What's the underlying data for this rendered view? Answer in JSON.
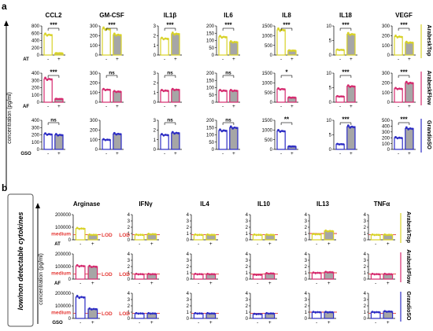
{
  "panel_a": {
    "letter": "a",
    "ylabel": "concentration (pg/ml)",
    "markers": [
      "",
      "-",
      "+"
    ],
    "rows": [
      {
        "treatment": "AT",
        "side_label": "ArabeskTop",
        "color": "#d8d227"
      },
      {
        "treatment": "AF",
        "side_label": "ArabeskFlow",
        "color": "#d52a6e"
      },
      {
        "treatment": "GSO",
        "side_label": "GrandioSO",
        "color": "#2c2cc4"
      }
    ]
  },
  "panel_b": {
    "letter": "b",
    "side_box_label": "low/non detectable cytokines",
    "ylabel": "concentration (pg/ml)",
    "markers": [
      "",
      "-",
      "+"
    ],
    "lod_label": "LOD",
    "medium_label": "medium",
    "lod_color": "#e53935",
    "rows": [
      {
        "treatment": "AT",
        "side_label": "ArabeskTop",
        "color": "#d8d227"
      },
      {
        "treatment": "AF",
        "side_label": "ArabeskFlow",
        "color": "#d52a6e"
      },
      {
        "treatment": "GSO",
        "side_label": "GrandioSO",
        "color": "#2c2cc4"
      }
    ]
  },
  "chart_data": [
    {
      "type": "bar",
      "panel": "a",
      "title": "CCL2",
      "categories": [
        "-",
        "+"
      ],
      "rows": [
        {
          "treatment": "AT",
          "ylim": [
            0,
            800
          ],
          "ticks": [
            0,
            200,
            400,
            600,
            800
          ],
          "values": [
            560,
            50
          ],
          "sig": "***"
        },
        {
          "treatment": "AF",
          "ylim": [
            0,
            400
          ],
          "ticks": [
            0,
            100,
            200,
            300,
            400
          ],
          "values": [
            320,
            45
          ],
          "sig": "***"
        },
        {
          "treatment": "GSO",
          "ylim": [
            0,
            400
          ],
          "ticks": [
            0,
            100,
            200,
            300,
            400
          ],
          "values": [
            210,
            200
          ],
          "sig": "ns"
        }
      ]
    },
    {
      "type": "bar",
      "panel": "a",
      "title": "GM-CSF",
      "categories": [
        "-",
        "+"
      ],
      "rows": [
        {
          "treatment": "AT",
          "ylim": [
            0,
            300
          ],
          "ticks": [
            0,
            100,
            200,
            300
          ],
          "values": [
            270,
            210
          ],
          "sig": "***"
        },
        {
          "treatment": "AF",
          "ylim": [
            0,
            300
          ],
          "ticks": [
            0,
            100,
            200,
            300
          ],
          "values": [
            130,
            110
          ],
          "sig": "ns"
        },
        {
          "treatment": "GSO",
          "ylim": [
            0,
            300
          ],
          "ticks": [
            0,
            100,
            200,
            300
          ],
          "values": [
            100,
            160
          ],
          "sig": ""
        }
      ]
    },
    {
      "type": "bar",
      "panel": "a",
      "title": "IL1β",
      "categories": [
        "-",
        "+"
      ],
      "rows": [
        {
          "treatment": "AT",
          "ylim": [
            0,
            3
          ],
          "ticks": [
            0,
            1,
            2,
            3
          ],
          "values": [
            1.7,
            2.2
          ],
          "sig": "***"
        },
        {
          "treatment": "AF",
          "ylim": [
            0,
            3
          ],
          "ticks": [
            0,
            1,
            2,
            3
          ],
          "values": [
            1.2,
            1.3
          ],
          "sig": "ns"
        },
        {
          "treatment": "GSO",
          "ylim": [
            0,
            3
          ],
          "ticks": [
            0,
            1,
            2,
            3
          ],
          "values": [
            1.5,
            1.7
          ],
          "sig": "ns"
        }
      ]
    },
    {
      "type": "bar",
      "panel": "a",
      "title": "IL6",
      "categories": [
        "-",
        "+"
      ],
      "rows": [
        {
          "treatment": "AT",
          "ylim": [
            0,
            200
          ],
          "ticks": [
            0,
            50,
            100,
            150,
            200
          ],
          "values": [
            125,
            90
          ],
          "sig": "***"
        },
        {
          "treatment": "AF",
          "ylim": [
            0,
            200
          ],
          "ticks": [
            0,
            50,
            100,
            150,
            200
          ],
          "values": [
            80,
            80
          ],
          "sig": "ns"
        },
        {
          "treatment": "GSO",
          "ylim": [
            0,
            200
          ],
          "ticks": [
            0,
            50,
            100,
            150,
            200
          ],
          "values": [
            130,
            150
          ],
          "sig": "ns"
        }
      ]
    },
    {
      "type": "bar",
      "panel": "a",
      "title": "IL8",
      "categories": [
        "-",
        "+"
      ],
      "rows": [
        {
          "treatment": "AT",
          "ylim": [
            0,
            1500
          ],
          "ticks": [
            0,
            500,
            1000,
            1500
          ],
          "values": [
            1300,
            230
          ],
          "sig": "***"
        },
        {
          "treatment": "AF",
          "ylim": [
            0,
            1500
          ],
          "ticks": [
            0,
            500,
            1000,
            1500
          ],
          "values": [
            680,
            240
          ],
          "sig": "*"
        },
        {
          "treatment": "GSO",
          "ylim": [
            0,
            1500
          ],
          "ticks": [
            0,
            500,
            1000,
            1500
          ],
          "values": [
            950,
            150
          ],
          "sig": "**"
        }
      ]
    },
    {
      "type": "bar",
      "panel": "a",
      "title": "IL18",
      "categories": [
        "-",
        "+"
      ],
      "rows": [
        {
          "treatment": "AT",
          "ylim": [
            0,
            10
          ],
          "ticks": [
            0,
            5,
            10
          ],
          "values": [
            1.8,
            7.2
          ],
          "sig": "***"
        },
        {
          "treatment": "AF",
          "ylim": [
            0,
            10
          ],
          "ticks": [
            0,
            5,
            10
          ],
          "values": [
            2.0,
            5.5
          ],
          "sig": "***"
        },
        {
          "treatment": "GSO",
          "ylim": [
            0,
            10
          ],
          "ticks": [
            0,
            5,
            10
          ],
          "values": [
            1.8,
            7.8
          ],
          "sig": "***"
        }
      ]
    },
    {
      "type": "bar",
      "panel": "a",
      "title": "VEGF",
      "categories": [
        "-",
        "+"
      ],
      "rows": [
        {
          "treatment": "AT",
          "ylim": [
            0,
            300
          ],
          "ticks": [
            0,
            100,
            200,
            300
          ],
          "values": [
            190,
            130
          ],
          "sig": "***"
        },
        {
          "treatment": "AF",
          "ylim": [
            0,
            300
          ],
          "ticks": [
            0,
            100,
            200,
            300
          ],
          "values": [
            140,
            200
          ],
          "sig": "***"
        },
        {
          "treatment": "GSO",
          "ylim": [
            0,
            500
          ],
          "ticks": [
            0,
            100,
            200,
            300,
            400,
            500
          ],
          "values": [
            200,
            360
          ],
          "sig": "***"
        }
      ]
    },
    {
      "type": "bar",
      "panel": "b",
      "title": "Arginase",
      "categories": [
        "-",
        "+"
      ],
      "lod_label": "LOD",
      "rows": [
        {
          "treatment": "AT",
          "ylim": [
            0,
            200000
          ],
          "ticks": [
            0,
            100000,
            200000
          ],
          "values": [
            90000,
            40000
          ],
          "lod": 40000,
          "medium": true
        },
        {
          "treatment": "AF",
          "ylim": [
            0,
            200000
          ],
          "ticks": [
            0,
            100000,
            200000
          ],
          "values": [
            105000,
            100000
          ],
          "lod": 40000,
          "medium": true
        },
        {
          "treatment": "GSO",
          "ylim": [
            0,
            200000
          ],
          "ticks": [
            0,
            100000,
            200000
          ],
          "values": [
            170000,
            75000
          ],
          "lod": 40000,
          "medium": true
        }
      ]
    },
    {
      "type": "bar",
      "panel": "b",
      "title": "IFNγ",
      "categories": [
        "-",
        "+"
      ],
      "lod_label": "LOD",
      "rows": [
        {
          "treatment": "AT",
          "ylim": [
            0,
            4
          ],
          "ticks": [
            0,
            1,
            2,
            3,
            4
          ],
          "values": [
            0.8,
            0.9
          ],
          "lod": 0.8,
          "show_lod_label": true
        },
        {
          "treatment": "AF",
          "ylim": [
            0,
            4
          ],
          "ticks": [
            0,
            1,
            2,
            3,
            4
          ],
          "values": [
            0.8,
            0.8
          ],
          "lod": 0.8,
          "show_lod_label": true
        },
        {
          "treatment": "GSO",
          "ylim": [
            0,
            4
          ],
          "ticks": [
            0,
            1,
            2,
            3,
            4
          ],
          "values": [
            0.8,
            0.8
          ],
          "lod": 0.8,
          "show_lod_label": true
        }
      ]
    },
    {
      "type": "bar",
      "panel": "b",
      "title": "IL4",
      "categories": [
        "-",
        "+"
      ],
      "rows": [
        {
          "treatment": "AT",
          "ylim": [
            0,
            4
          ],
          "ticks": [
            0,
            1,
            2,
            3,
            4
          ],
          "values": [
            0.8,
            0.8
          ],
          "lod": 0.8
        },
        {
          "treatment": "AF",
          "ylim": [
            0,
            4
          ],
          "ticks": [
            0,
            1,
            2,
            3,
            4
          ],
          "values": [
            0.8,
            0.8
          ],
          "lod": 0.8
        },
        {
          "treatment": "GSO",
          "ylim": [
            0,
            4
          ],
          "ticks": [
            0,
            1,
            2,
            3,
            4
          ],
          "values": [
            0.8,
            0.8
          ],
          "lod": 0.8
        }
      ]
    },
    {
      "type": "bar",
      "panel": "b",
      "title": "IL10",
      "categories": [
        "-",
        "+"
      ],
      "rows": [
        {
          "treatment": "AT",
          "ylim": [
            0,
            4
          ],
          "ticks": [
            0,
            1,
            2,
            3,
            4
          ],
          "values": [
            0.8,
            0.8
          ],
          "lod": 0.8
        },
        {
          "treatment": "AF",
          "ylim": [
            0,
            4
          ],
          "ticks": [
            0,
            1,
            2,
            3,
            4
          ],
          "values": [
            0.7,
            0.9
          ],
          "lod": 0.8
        },
        {
          "treatment": "GSO",
          "ylim": [
            0,
            4
          ],
          "ticks": [
            0,
            1,
            2,
            3,
            4
          ],
          "values": [
            0.7,
            0.8
          ],
          "lod": 0.8
        }
      ]
    },
    {
      "type": "bar",
      "panel": "b",
      "title": "IL13",
      "categories": [
        "-",
        "+"
      ],
      "rows": [
        {
          "treatment": "AT",
          "ylim": [
            0,
            4
          ],
          "ticks": [
            0,
            1,
            2,
            3,
            4
          ],
          "values": [
            0.9,
            1.4
          ],
          "lod": 1.0
        },
        {
          "treatment": "AF",
          "ylim": [
            0,
            4
          ],
          "ticks": [
            0,
            1,
            2,
            3,
            4
          ],
          "values": [
            1.0,
            1.1
          ],
          "lod": 1.0
        },
        {
          "treatment": "GSO",
          "ylim": [
            0,
            4
          ],
          "ticks": [
            0,
            1,
            2,
            3,
            4
          ],
          "values": [
            1.0,
            1.0
          ],
          "lod": 1.0
        }
      ]
    },
    {
      "type": "bar",
      "panel": "b",
      "title": "TNFα",
      "categories": [
        "-",
        "+"
      ],
      "rows": [
        {
          "treatment": "AT",
          "ylim": [
            0,
            4
          ],
          "ticks": [
            0,
            1,
            2,
            3,
            4
          ],
          "values": [
            0.8,
            0.8
          ],
          "lod": 0.8
        },
        {
          "treatment": "AF",
          "ylim": [
            0,
            4
          ],
          "ticks": [
            0,
            1,
            2,
            3,
            4
          ],
          "values": [
            0.8,
            0.8
          ],
          "lod": 0.8
        },
        {
          "treatment": "GSO",
          "ylim": [
            0,
            4
          ],
          "ticks": [
            0,
            1,
            2,
            3,
            4
          ],
          "values": [
            1.0,
            1.1
          ],
          "lod": 0.8
        }
      ]
    }
  ]
}
